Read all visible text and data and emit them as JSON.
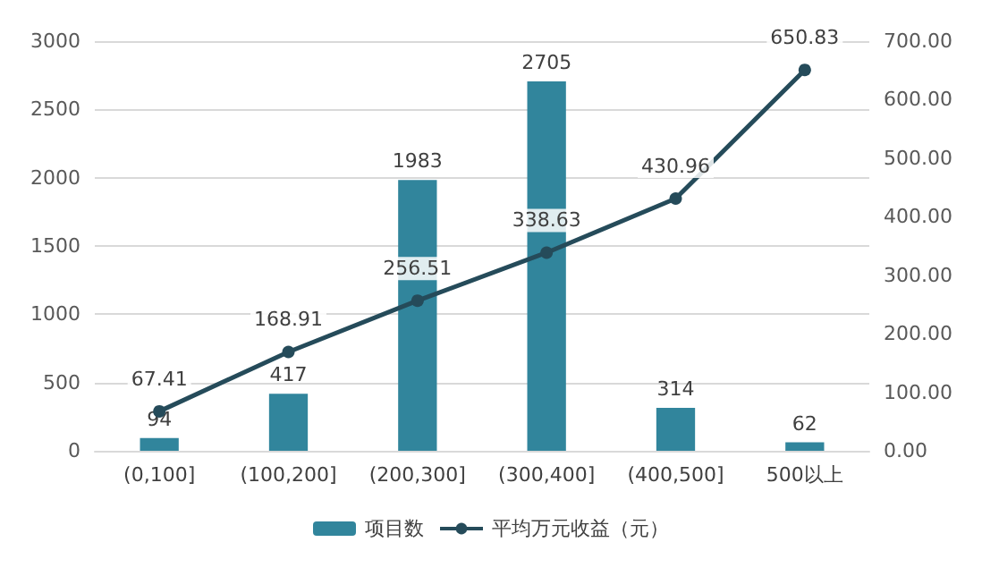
{
  "chart_data": {
    "type": "bar",
    "categories": [
      "(0,100]",
      "(100,200]",
      "(200,300]",
      "(300,400]",
      "(400,500]",
      "500以上"
    ],
    "series": [
      {
        "name": "项目数",
        "color": "#31859c",
        "values": [
          94,
          417,
          1983,
          2705,
          314,
          62
        ]
      },
      {
        "name": "平均万元收益（元）",
        "type": "line",
        "axis": "y2",
        "color": "#254b5a",
        "values": [
          67.41,
          168.91,
          256.51,
          338.63,
          430.96,
          650.83
        ]
      }
    ],
    "ylim": [
      0,
      3000
    ],
    "yticks": [
      0,
      500,
      1000,
      1500,
      2000,
      2500,
      3000
    ],
    "y2lim": [
      0,
      700
    ],
    "y2ticks": [
      {
        "value": 0,
        "label": "0.00"
      },
      {
        "value": 100,
        "label": "100.00"
      },
      {
        "value": 200,
        "label": "200.00"
      },
      {
        "value": 300,
        "label": "300.00"
      },
      {
        "value": 400,
        "label": "400.00"
      },
      {
        "value": 500,
        "label": "500.00"
      },
      {
        "value": 600,
        "label": "600.00"
      },
      {
        "value": 700,
        "label": "700.00"
      }
    ],
    "grid": "y",
    "legend": "bottom",
    "marker": "circle",
    "line_style": "solid",
    "data_labels": true
  }
}
